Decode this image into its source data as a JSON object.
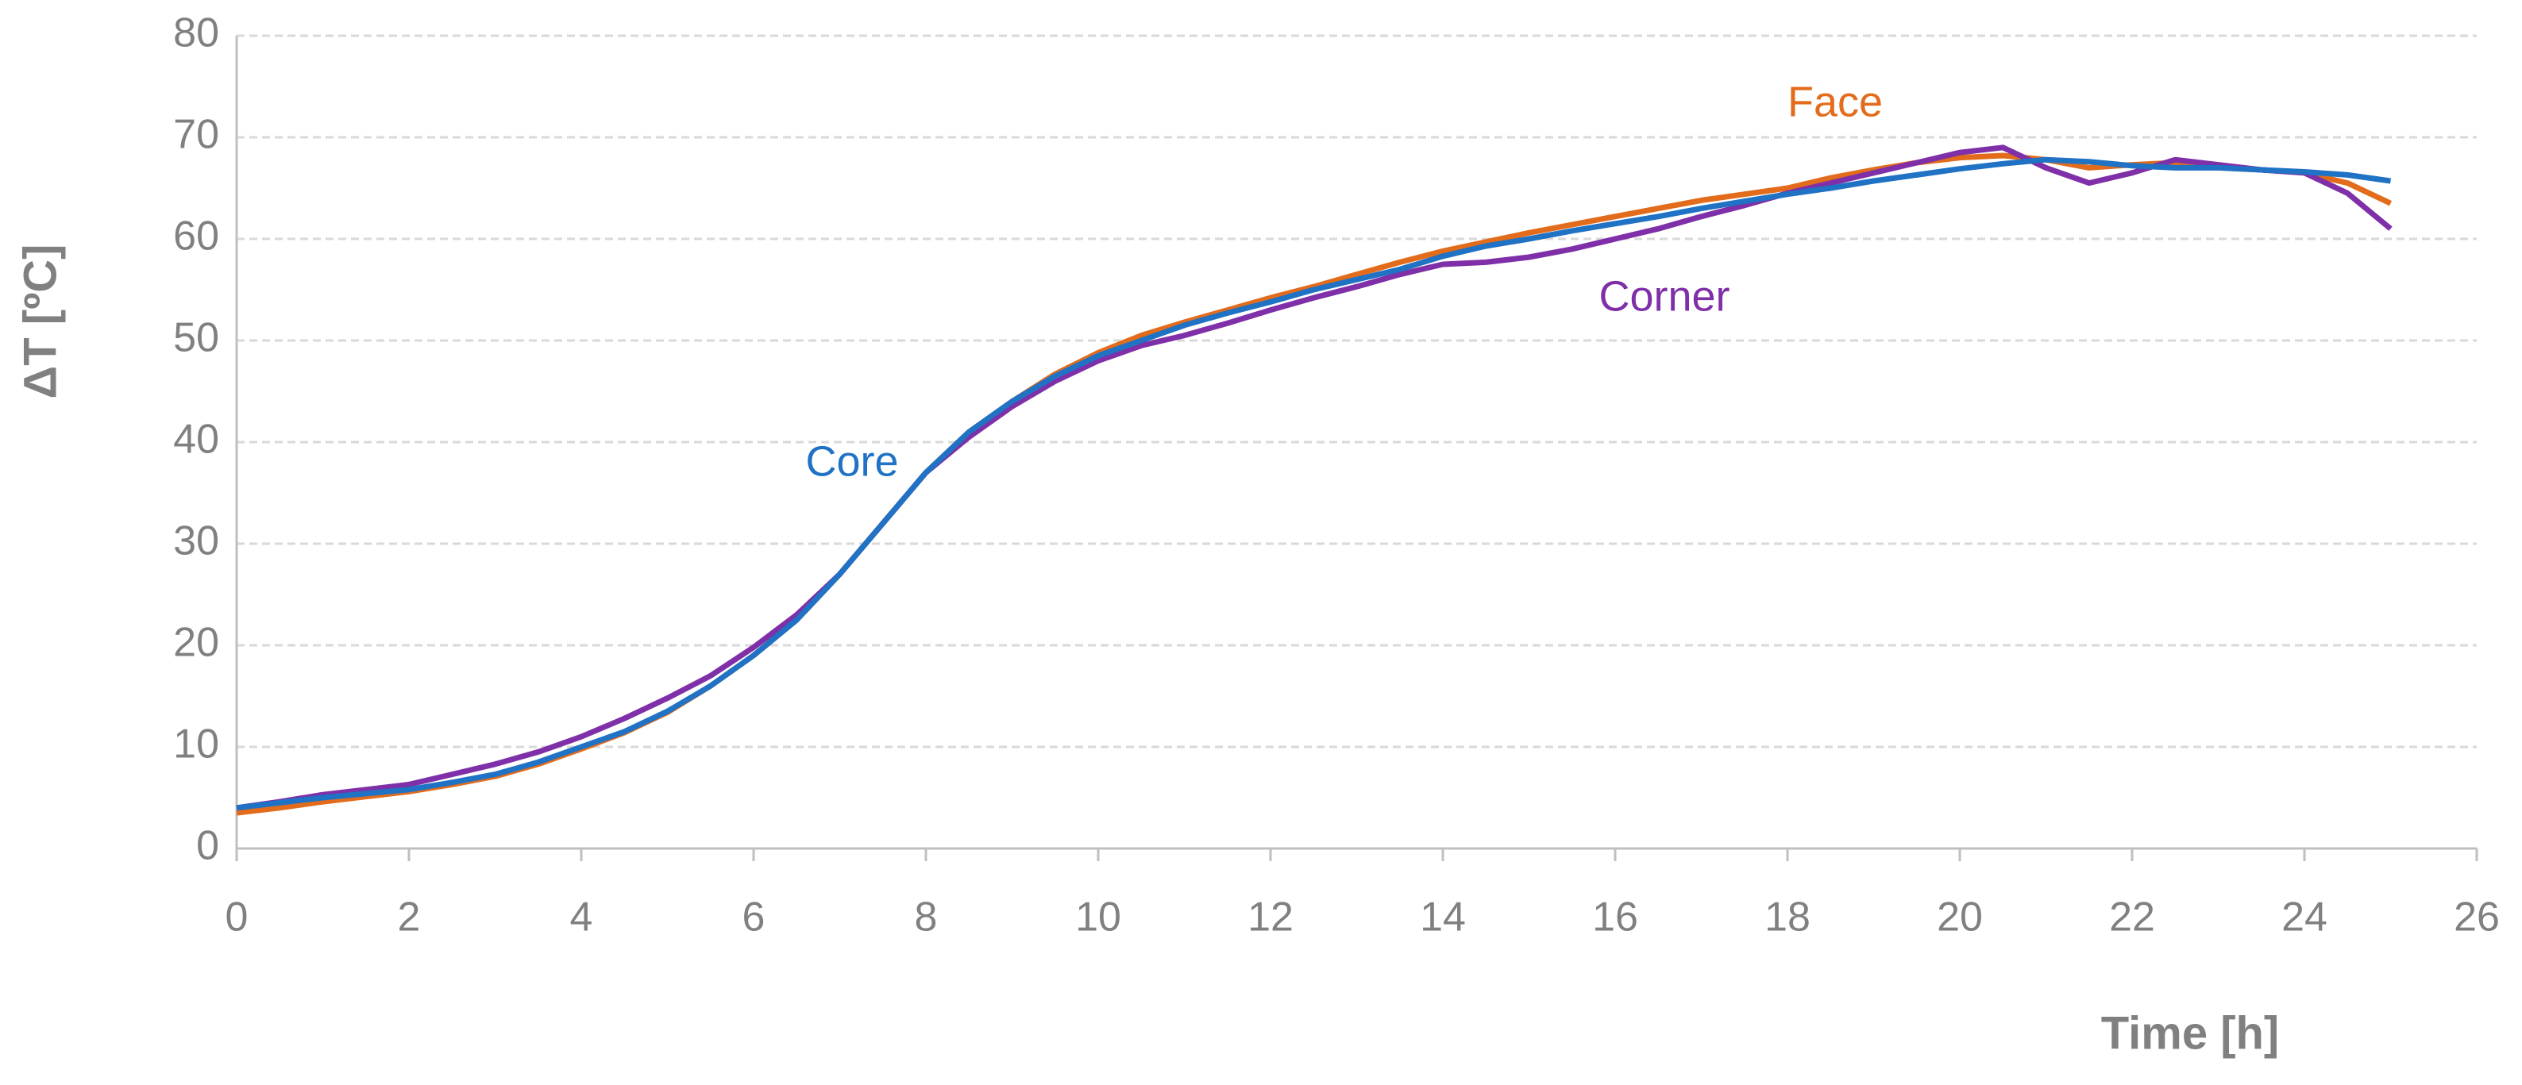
{
  "chart_data": {
    "type": "line",
    "x_label": "Time [h]",
    "y_label": "ΔT [ºC]",
    "x": [
      0,
      0.5,
      1,
      1.5,
      2,
      2.5,
      3,
      3.5,
      4,
      4.5,
      5,
      5.5,
      6,
      6.5,
      7,
      7.5,
      8,
      8.5,
      9,
      9.5,
      10,
      10.5,
      11,
      11.5,
      12,
      12.5,
      13,
      13.5,
      14,
      14.5,
      15,
      15.5,
      16,
      16.5,
      17,
      17.5,
      18,
      18.5,
      19,
      19.5,
      20,
      20.5,
      21,
      21.5,
      22,
      22.5,
      23,
      23.5,
      24,
      24.5,
      25
    ],
    "series": [
      {
        "name": "Face",
        "color": "#e36c1c",
        "values": [
          3.5,
          4,
          4.6,
          5.1,
          5.6,
          6.3,
          7.1,
          8.3,
          9.8,
          11.4,
          13.4,
          16,
          19,
          22.5,
          27,
          32,
          37,
          41,
          44,
          46.7,
          48.8,
          50.5,
          51.8,
          53,
          54.2,
          55.3,
          56.5,
          57.7,
          58.8,
          59.7,
          60.6,
          61.4,
          62.2,
          63,
          63.8,
          64.4,
          65,
          66,
          66.8,
          67.5,
          68,
          68.2,
          67.8,
          67,
          67.3,
          67.5,
          67,
          66.8,
          66.5,
          65.5,
          63.5
        ]
      },
      {
        "name": "Corner",
        "color": "#7f30a8",
        "values": [
          4,
          4.6,
          5.3,
          5.8,
          6.3,
          7.3,
          8.3,
          9.5,
          11,
          12.8,
          14.8,
          17,
          19.8,
          23,
          27,
          32,
          37,
          40.5,
          43.5,
          46,
          48,
          49.5,
          50.5,
          51.7,
          53,
          54.2,
          55.3,
          56.5,
          57.5,
          57.7,
          58.2,
          59,
          60,
          61,
          62.2,
          63.3,
          64.5,
          65.5,
          66.5,
          67.5,
          68.5,
          69,
          67,
          65.5,
          66.5,
          67.8,
          67.3,
          66.8,
          66.5,
          64.5,
          61
        ]
      },
      {
        "name": "Core",
        "color": "#1f72c4",
        "values": [
          4,
          4.5,
          5,
          5.4,
          5.8,
          6.5,
          7.3,
          8.5,
          10,
          11.5,
          13.5,
          16,
          19,
          22.5,
          27,
          32,
          37,
          41,
          44,
          46.5,
          48.5,
          50,
          51.5,
          52.7,
          53.8,
          55,
          56,
          57,
          58.3,
          59.3,
          60,
          60.8,
          61.5,
          62.2,
          63,
          63.7,
          64.4,
          65,
          65.7,
          66.3,
          66.9,
          67.4,
          67.8,
          67.6,
          67.2,
          67,
          67,
          66.8,
          66.6,
          66.3,
          65.7
        ]
      }
    ],
    "xlim": [
      0,
      26
    ],
    "xticks": [
      0,
      2,
      4,
      6,
      8,
      10,
      12,
      14,
      16,
      18,
      20,
      22,
      24,
      26
    ],
    "ylim": [
      0,
      80
    ],
    "yticks": [
      0,
      10,
      20,
      30,
      40,
      50,
      60,
      70,
      80
    ],
    "grid": true
  }
}
